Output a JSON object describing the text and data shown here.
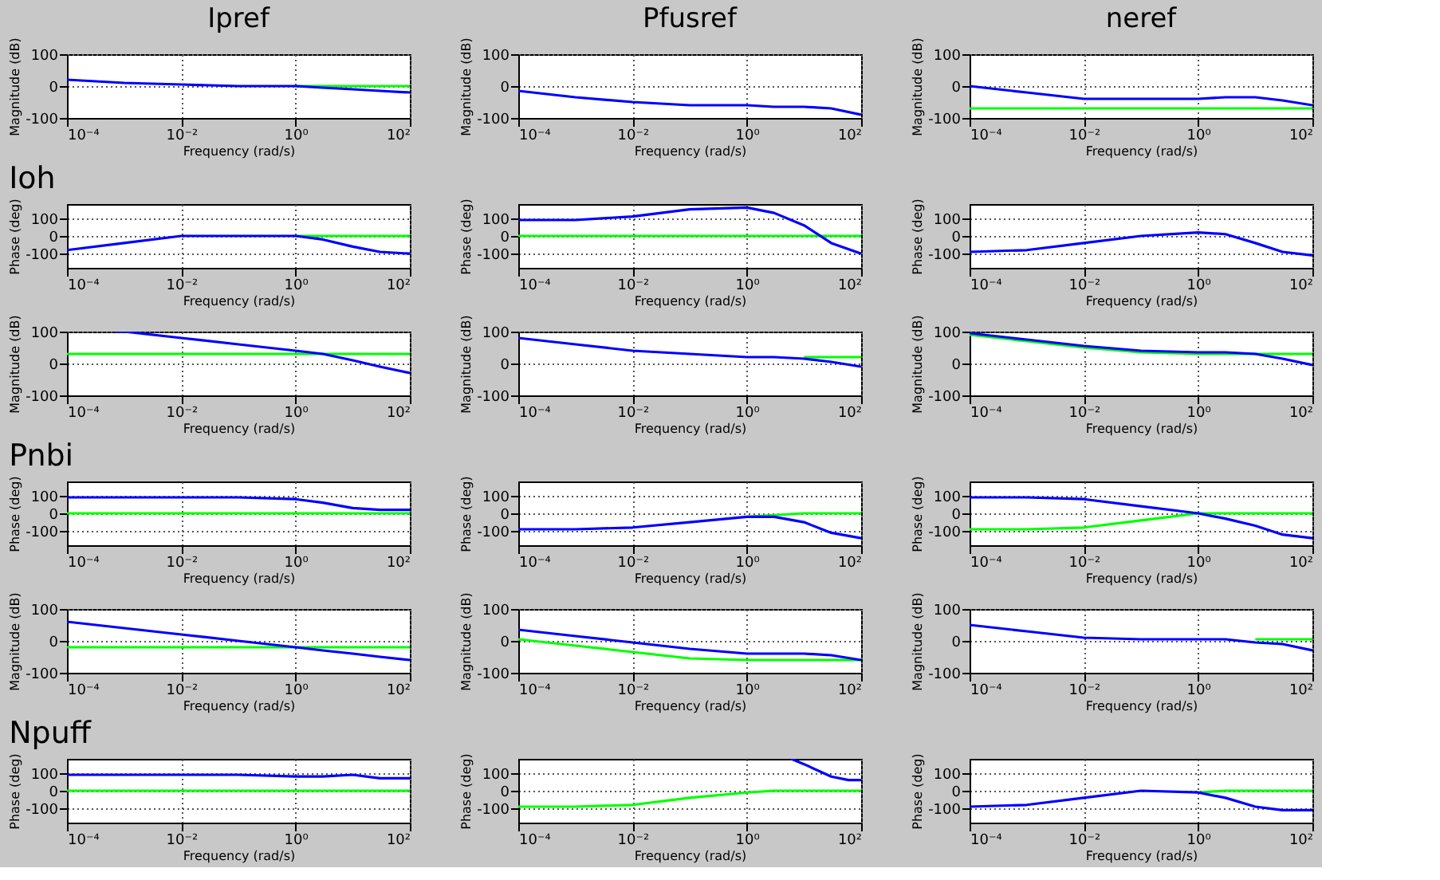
{
  "chart_data": [
    {
      "type": "line",
      "title": "Ipref",
      "xlabel": "Frequency (rad/s)",
      "ylabel": "Magnitude (dB)",
      "log": "x",
      "grid": true,
      "xlim": [
        0.0001,
        100
      ],
      "xticks": [
        {
          "value": 0.0001,
          "label": "10⁻⁴"
        },
        {
          "value": 0.01,
          "label": "10⁻²"
        },
        {
          "value": 1,
          "label": "10⁰"
        },
        {
          "value": 100,
          "label": "10²"
        }
      ],
      "ylim": [
        -100,
        100
      ],
      "yticks": [
        -100,
        0,
        100
      ],
      "x": [
        0.0001,
        0.001,
        0.01,
        0.1,
        1,
        3,
        10,
        30,
        100
      ],
      "series": [
        {
          "color": "#00ff00",
          "x": [
            1,
            3,
            10,
            30,
            100
          ],
          "values": [
            0,
            0,
            0,
            0,
            0
          ]
        },
        {
          "color": "#0000ff",
          "values": [
            20,
            10,
            5,
            0,
            0,
            -5,
            -10,
            -15,
            -20
          ]
        }
      ]
    },
    {
      "type": "line",
      "title": "Pfusref",
      "xlabel": "Frequency (rad/s)",
      "ylabel": "Magnitude (dB)",
      "log": "x",
      "grid": true,
      "xlim": [
        0.0001,
        100
      ],
      "xticks": [
        {
          "value": 0.0001,
          "label": "10⁻⁴"
        },
        {
          "value": 0.01,
          "label": "10⁻²"
        },
        {
          "value": 1,
          "label": "10⁰"
        },
        {
          "value": 100,
          "label": "10²"
        }
      ],
      "ylim": [
        -100,
        100
      ],
      "yticks": [
        -100,
        0,
        100
      ],
      "x": [
        0.0001,
        0.001,
        0.01,
        0.1,
        1,
        3,
        10,
        30,
        100
      ],
      "series": [
        {
          "color": "#0000ff",
          "values": [
            -15,
            -35,
            -50,
            -60,
            -60,
            -65,
            -65,
            -70,
            -90
          ]
        }
      ]
    },
    {
      "type": "line",
      "title": "neref",
      "xlabel": "Frequency (rad/s)",
      "ylabel": "Magnitude (dB)",
      "log": "x",
      "grid": true,
      "xlim": [
        0.0001,
        100
      ],
      "xticks": [
        {
          "value": 0.0001,
          "label": "10⁻⁴"
        },
        {
          "value": 0.01,
          "label": "10⁻²"
        },
        {
          "value": 1,
          "label": "10⁰"
        },
        {
          "value": 100,
          "label": "10²"
        }
      ],
      "ylim": [
        -100,
        100
      ],
      "yticks": [
        -100,
        0,
        100
      ],
      "x": [
        0.0001,
        0.001,
        0.01,
        0.1,
        1,
        3,
        10,
        30,
        100
      ],
      "series": [
        {
          "color": "#00ff00",
          "values": [
            -70,
            -70,
            -70,
            -70,
            -70,
            -70,
            -70,
            -70,
            -70
          ]
        },
        {
          "color": "#0000ff",
          "values": [
            0,
            -20,
            -40,
            -40,
            -40,
            -35,
            -35,
            -45,
            -60
          ]
        }
      ]
    },
    {
      "type": "line",
      "title": "Ioh",
      "xlabel": "Frequency (rad/s)",
      "ylabel": "Phase (deg)",
      "log": "x",
      "grid": true,
      "xlim": [
        0.0001,
        100
      ],
      "xticks": [
        {
          "value": 0.0001,
          "label": "10⁻⁴"
        },
        {
          "value": 0.01,
          "label": "10⁻²"
        },
        {
          "value": 1,
          "label": "10⁰"
        },
        {
          "value": 100,
          "label": "10²"
        }
      ],
      "ylim": [
        -180,
        180
      ],
      "yticks": [
        -100,
        0,
        100
      ],
      "x": [
        0.0001,
        0.001,
        0.01,
        0.1,
        1,
        3,
        10,
        30,
        100
      ],
      "series": [
        {
          "color": "#00ff00",
          "x": [
            1,
            3,
            10,
            30,
            100
          ],
          "values": [
            0,
            0,
            0,
            0,
            0
          ]
        },
        {
          "color": "#0000ff",
          "values": [
            -80,
            -40,
            0,
            0,
            0,
            -20,
            -60,
            -90,
            -100
          ]
        }
      ]
    },
    {
      "type": "line",
      "xlabel": "Frequency (rad/s)",
      "ylabel": "Phase (deg)",
      "log": "x",
      "grid": true,
      "xlim": [
        0.0001,
        100
      ],
      "xticks": [
        {
          "value": 0.0001,
          "label": "10⁻⁴"
        },
        {
          "value": 0.01,
          "label": "10⁻²"
        },
        {
          "value": 1,
          "label": "10⁰"
        },
        {
          "value": 100,
          "label": "10²"
        }
      ],
      "ylim": [
        -180,
        180
      ],
      "yticks": [
        -100,
        0,
        100
      ],
      "x": [
        0.0001,
        0.001,
        0.01,
        0.1,
        1,
        3,
        10,
        30,
        100
      ],
      "series": [
        {
          "color": "#00ff00",
          "values": [
            0,
            0,
            0,
            0,
            0,
            0,
            0,
            0,
            0
          ]
        },
        {
          "color": "#0000ff",
          "values": [
            90,
            90,
            110,
            150,
            160,
            130,
            60,
            -40,
            -100
          ]
        }
      ]
    },
    {
      "type": "line",
      "xlabel": "Frequency (rad/s)",
      "ylabel": "Phase (deg)",
      "log": "x",
      "grid": true,
      "xlim": [
        0.0001,
        100
      ],
      "xticks": [
        {
          "value": 0.0001,
          "label": "10⁻⁴"
        },
        {
          "value": 0.01,
          "label": "10⁻²"
        },
        {
          "value": 1,
          "label": "10⁰"
        },
        {
          "value": 100,
          "label": "10²"
        }
      ],
      "ylim": [
        -180,
        180
      ],
      "yticks": [
        -100,
        0,
        100
      ],
      "x": [
        0.0001,
        0.001,
        0.01,
        0.1,
        1,
        3,
        10,
        30,
        100
      ],
      "series": [
        {
          "color": "#0000ff",
          "values": [
            -90,
            -80,
            -40,
            0,
            20,
            10,
            -40,
            -90,
            -110
          ]
        }
      ]
    },
    {
      "type": "line",
      "xlabel": "Frequency (rad/s)",
      "ylabel": "Magnitude (dB)",
      "log": "x",
      "grid": true,
      "xlim": [
        0.0001,
        100
      ],
      "xticks": [
        {
          "value": 0.0001,
          "label": "10⁻⁴"
        },
        {
          "value": 0.01,
          "label": "10⁻²"
        },
        {
          "value": 1,
          "label": "10⁰"
        },
        {
          "value": 100,
          "label": "10²"
        }
      ],
      "ylim": [
        -100,
        100
      ],
      "yticks": [
        -100,
        0,
        100
      ],
      "x": [
        0.0001,
        0.001,
        0.01,
        0.1,
        1,
        3,
        10,
        30,
        100
      ],
      "series": [
        {
          "color": "#00ff00",
          "values": [
            30,
            30,
            30,
            30,
            30,
            30,
            30,
            30,
            30
          ]
        },
        {
          "color": "#0000ff",
          "x": [
            0.0007,
            0.001,
            0.01,
            0.1,
            1,
            3,
            10,
            30,
            100
          ],
          "values": [
            100,
            100,
            80,
            60,
            40,
            30,
            10,
            -10,
            -30
          ]
        }
      ]
    },
    {
      "type": "line",
      "xlabel": "Frequency (rad/s)",
      "ylabel": "Magnitude (dB)",
      "log": "x",
      "grid": true,
      "xlim": [
        0.0001,
        100
      ],
      "xticks": [
        {
          "value": 0.0001,
          "label": "10⁻⁴"
        },
        {
          "value": 0.01,
          "label": "10⁻²"
        },
        {
          "value": 1,
          "label": "10⁰"
        },
        {
          "value": 100,
          "label": "10²"
        }
      ],
      "ylim": [
        -100,
        100
      ],
      "yticks": [
        -100,
        0,
        100
      ],
      "x": [
        0.0001,
        0.001,
        0.01,
        0.1,
        1,
        3,
        10,
        30,
        100
      ],
      "series": [
        {
          "color": "#00ff00",
          "x": [
            10,
            30,
            100
          ],
          "values": [
            20,
            20,
            20
          ]
        },
        {
          "color": "#0000ff",
          "values": [
            80,
            60,
            40,
            30,
            20,
            20,
            15,
            5,
            -10
          ]
        }
      ]
    },
    {
      "type": "line",
      "xlabel": "Frequency (rad/s)",
      "ylabel": "Magnitude (dB)",
      "log": "x",
      "grid": true,
      "xlim": [
        0.0001,
        100
      ],
      "xticks": [
        {
          "value": 0.0001,
          "label": "10⁻⁴"
        },
        {
          "value": 0.01,
          "label": "10⁻²"
        },
        {
          "value": 1,
          "label": "10⁰"
        },
        {
          "value": 100,
          "label": "10²"
        }
      ],
      "ylim": [
        -100,
        100
      ],
      "yticks": [
        -100,
        0,
        100
      ],
      "x": [
        0.0001,
        0.001,
        0.01,
        0.1,
        1,
        3,
        10,
        30,
        100
      ],
      "series": [
        {
          "color": "#00ff00",
          "values": [
            90,
            70,
            50,
            35,
            30,
            30,
            30,
            30,
            30
          ]
        },
        {
          "color": "#0000ff",
          "values": [
            95,
            75,
            55,
            40,
            35,
            35,
            30,
            15,
            -5
          ]
        }
      ]
    },
    {
      "type": "line",
      "title": "Pnbi",
      "xlabel": "Frequency (rad/s)",
      "ylabel": "Phase (deg)",
      "log": "x",
      "grid": true,
      "xlim": [
        0.0001,
        100
      ],
      "xticks": [
        {
          "value": 0.0001,
          "label": "10⁻⁴"
        },
        {
          "value": 0.01,
          "label": "10⁻²"
        },
        {
          "value": 1,
          "label": "10⁰"
        },
        {
          "value": 100,
          "label": "10²"
        }
      ],
      "ylim": [
        -180,
        180
      ],
      "yticks": [
        -100,
        0,
        100
      ],
      "x": [
        0.0001,
        0.001,
        0.01,
        0.1,
        1,
        3,
        10,
        30,
        100
      ],
      "series": [
        {
          "color": "#00ff00",
          "values": [
            0,
            0,
            0,
            0,
            0,
            0,
            0,
            0,
            0
          ]
        },
        {
          "color": "#0000ff",
          "values": [
            90,
            90,
            90,
            90,
            80,
            60,
            30,
            20,
            20
          ]
        }
      ]
    },
    {
      "type": "line",
      "xlabel": "Frequency (rad/s)",
      "ylabel": "Phase (deg)",
      "log": "x",
      "grid": true,
      "xlim": [
        0.0001,
        100
      ],
      "xticks": [
        {
          "value": 0.0001,
          "label": "10⁻⁴"
        },
        {
          "value": 0.01,
          "label": "10⁻²"
        },
        {
          "value": 1,
          "label": "10⁰"
        },
        {
          "value": 100,
          "label": "10²"
        }
      ],
      "ylim": [
        -180,
        180
      ],
      "yticks": [
        -100,
        0,
        100
      ],
      "x": [
        0.0001,
        0.001,
        0.01,
        0.1,
        1,
        3,
        10,
        30,
        100
      ],
      "series": [
        {
          "color": "#00ff00",
          "x": [
            1,
            3,
            10,
            30,
            100
          ],
          "values": [
            -20,
            -10,
            0,
            0,
            0
          ]
        },
        {
          "color": "#0000ff",
          "values": [
            -90,
            -90,
            -80,
            -50,
            -20,
            -20,
            -50,
            -110,
            -140
          ]
        }
      ]
    },
    {
      "type": "line",
      "xlabel": "Frequency (rad/s)",
      "ylabel": "Phase (deg)",
      "log": "x",
      "grid": true,
      "xlim": [
        0.0001,
        100
      ],
      "xticks": [
        {
          "value": 0.0001,
          "label": "10⁻⁴"
        },
        {
          "value": 0.01,
          "label": "10⁻²"
        },
        {
          "value": 1,
          "label": "10⁰"
        },
        {
          "value": 100,
          "label": "10²"
        }
      ],
      "ylim": [
        -180,
        180
      ],
      "yticks": [
        -100,
        0,
        100
      ],
      "x": [
        0.0001,
        0.001,
        0.01,
        0.1,
        1,
        3,
        10,
        30,
        100
      ],
      "series": [
        {
          "color": "#00ff00",
          "values": [
            -90,
            -90,
            -80,
            -40,
            0,
            0,
            0,
            0,
            0
          ]
        },
        {
          "color": "#0000ff",
          "values": [
            90,
            90,
            80,
            40,
            0,
            -30,
            -70,
            -120,
            -140
          ]
        }
      ]
    },
    {
      "type": "line",
      "xlabel": "Frequency (rad/s)",
      "ylabel": "Magnitude (dB)",
      "log": "x",
      "grid": true,
      "xlim": [
        0.0001,
        100
      ],
      "xticks": [
        {
          "value": 0.0001,
          "label": "10⁻⁴"
        },
        {
          "value": 0.01,
          "label": "10⁻²"
        },
        {
          "value": 1,
          "label": "10⁰"
        },
        {
          "value": 100,
          "label": "10²"
        }
      ],
      "ylim": [
        -100,
        100
      ],
      "yticks": [
        -100,
        0,
        100
      ],
      "x": [
        0.0001,
        0.001,
        0.01,
        0.1,
        1,
        3,
        10,
        30,
        100
      ],
      "series": [
        {
          "color": "#00ff00",
          "values": [
            -20,
            -20,
            -20,
            -20,
            -20,
            -20,
            -20,
            -20,
            -20
          ]
        },
        {
          "color": "#0000ff",
          "values": [
            60,
            40,
            20,
            0,
            -20,
            -30,
            -40,
            -50,
            -60
          ]
        }
      ]
    },
    {
      "type": "line",
      "xlabel": "Frequency (rad/s)",
      "ylabel": "Magnitude (dB)",
      "log": "x",
      "grid": true,
      "xlim": [
        0.0001,
        100
      ],
      "xticks": [
        {
          "value": 0.0001,
          "label": "10⁻⁴"
        },
        {
          "value": 0.01,
          "label": "10⁻²"
        },
        {
          "value": 1,
          "label": "10⁰"
        },
        {
          "value": 100,
          "label": "10²"
        }
      ],
      "ylim": [
        -100,
        100
      ],
      "yticks": [
        -100,
        0,
        100
      ],
      "x": [
        0.0001,
        0.001,
        0.01,
        0.1,
        1,
        3,
        10,
        30,
        100
      ],
      "series": [
        {
          "color": "#00ff00",
          "values": [
            5,
            -15,
            -35,
            -55,
            -60,
            -60,
            -60,
            -60,
            -60
          ]
        },
        {
          "color": "#0000ff",
          "values": [
            35,
            15,
            -5,
            -25,
            -40,
            -40,
            -40,
            -45,
            -60
          ]
        }
      ]
    },
    {
      "type": "line",
      "xlabel": "Frequency (rad/s)",
      "ylabel": "Magnitude (dB)",
      "log": "x",
      "grid": true,
      "xlim": [
        0.0001,
        100
      ],
      "xticks": [
        {
          "value": 0.0001,
          "label": "10⁻⁴"
        },
        {
          "value": 0.01,
          "label": "10⁻²"
        },
        {
          "value": 1,
          "label": "10⁰"
        },
        {
          "value": 100,
          "label": "10²"
        }
      ],
      "ylim": [
        -100,
        100
      ],
      "yticks": [
        -100,
        0,
        100
      ],
      "x": [
        0.0001,
        0.001,
        0.01,
        0.1,
        1,
        3,
        10,
        30,
        100
      ],
      "series": [
        {
          "color": "#00ff00",
          "x": [
            10,
            30,
            100
          ],
          "values": [
            5,
            5,
            5
          ]
        },
        {
          "color": "#0000ff",
          "values": [
            50,
            30,
            10,
            5,
            5,
            5,
            -5,
            -10,
            -30
          ]
        }
      ]
    },
    {
      "type": "line",
      "title": "Npuff",
      "xlabel": "Frequency (rad/s)",
      "ylabel": "Phase (deg)",
      "log": "x",
      "grid": true,
      "xlim": [
        0.0001,
        100
      ],
      "xticks": [
        {
          "value": 0.0001,
          "label": "10⁻⁴"
        },
        {
          "value": 0.01,
          "label": "10⁻²"
        },
        {
          "value": 1,
          "label": "10⁰"
        },
        {
          "value": 100,
          "label": "10²"
        }
      ],
      "ylim": [
        -180,
        180
      ],
      "yticks": [
        -100,
        0,
        100
      ],
      "x": [
        0.0001,
        0.001,
        0.01,
        0.1,
        1,
        3,
        10,
        30,
        100
      ],
      "series": [
        {
          "color": "#00ff00",
          "values": [
            0,
            0,
            0,
            0,
            0,
            0,
            0,
            0,
            0
          ]
        },
        {
          "color": "#0000ff",
          "values": [
            90,
            90,
            90,
            90,
            80,
            80,
            90,
            70,
            70
          ]
        }
      ]
    },
    {
      "type": "line",
      "xlabel": "Frequency (rad/s)",
      "ylabel": "Phase (deg)",
      "log": "x",
      "grid": true,
      "xlim": [
        0.0001,
        100
      ],
      "xticks": [
        {
          "value": 0.0001,
          "label": "10⁻⁴"
        },
        {
          "value": 0.01,
          "label": "10⁻²"
        },
        {
          "value": 1,
          "label": "10⁰"
        },
        {
          "value": 100,
          "label": "10²"
        }
      ],
      "ylim": [
        -180,
        180
      ],
      "yticks": [
        -100,
        0,
        100
      ],
      "x": [
        0.0001,
        0.001,
        0.01,
        0.1,
        1,
        3,
        10,
        30,
        100
      ],
      "series": [
        {
          "color": "#00ff00",
          "values": [
            -90,
            -90,
            -80,
            -40,
            -10,
            0,
            0,
            0,
            0
          ]
        },
        {
          "color": "#0000ff",
          "x": [
            6,
            10,
            30,
            60,
            100
          ],
          "values": [
            180,
            150,
            80,
            60,
            60
          ]
        }
      ]
    },
    {
      "type": "line",
      "xlabel": "Frequency (rad/s)",
      "ylabel": "Phase (deg)",
      "log": "x",
      "grid": true,
      "xlim": [
        0.0001,
        100
      ],
      "xticks": [
        {
          "value": 0.0001,
          "label": "10⁻⁴"
        },
        {
          "value": 0.01,
          "label": "10⁻²"
        },
        {
          "value": 1,
          "label": "10⁰"
        },
        {
          "value": 100,
          "label": "10²"
        }
      ],
      "ylim": [
        -180,
        180
      ],
      "yticks": [
        -100,
        0,
        100
      ],
      "x": [
        0.0001,
        0.001,
        0.01,
        0.1,
        1,
        3,
        10,
        30,
        100
      ],
      "series": [
        {
          "color": "#00ff00",
          "x": [
            1,
            3,
            10,
            30,
            100
          ],
          "values": [
            -10,
            0,
            0,
            0,
            0
          ]
        },
        {
          "color": "#0000ff",
          "values": [
            -90,
            -80,
            -40,
            0,
            -10,
            -40,
            -90,
            -110,
            -110
          ]
        }
      ]
    }
  ]
}
